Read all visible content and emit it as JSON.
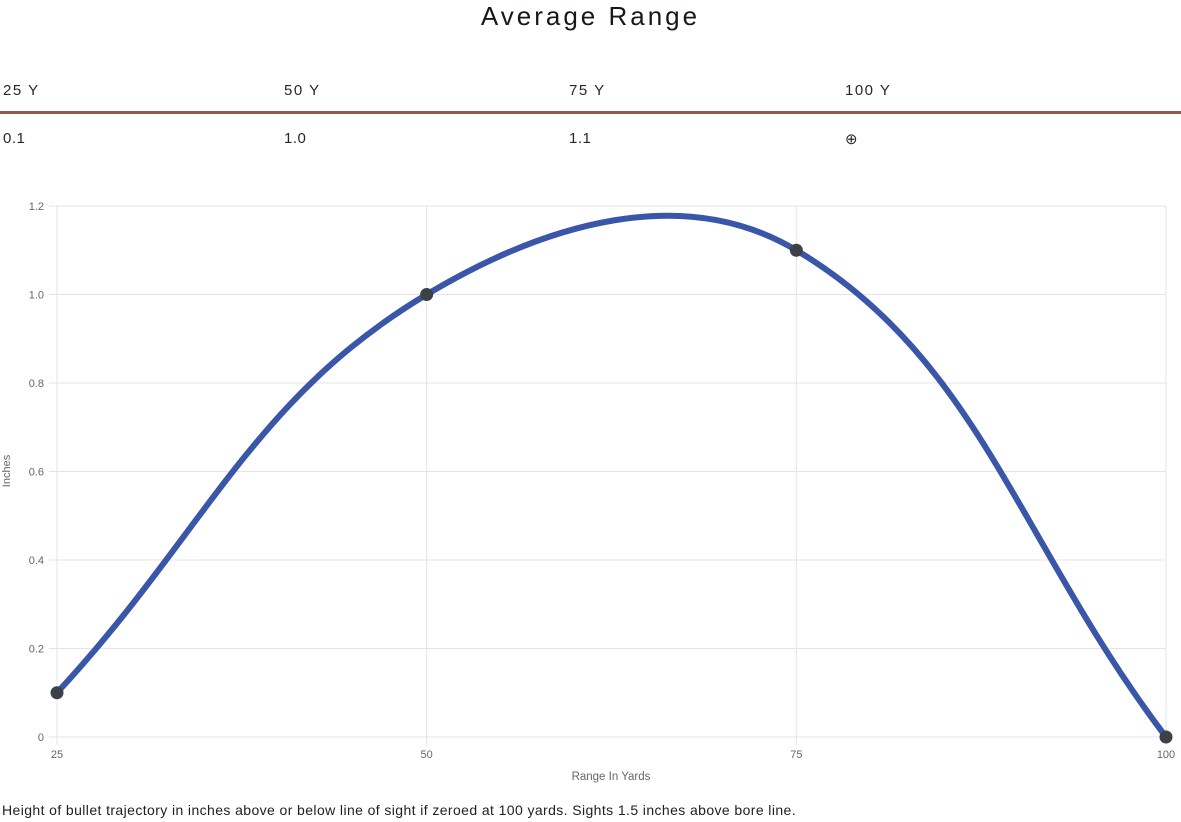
{
  "title": "Average Range",
  "summary": {
    "columns": [
      {
        "label": "25 Y",
        "value": "0.1"
      },
      {
        "label": "50 Y",
        "value": "1.0"
      },
      {
        "label": "75 Y",
        "value": "1.1"
      },
      {
        "label": "100 Y",
        "value": "⊕"
      }
    ],
    "divider_color": "#96584C"
  },
  "chart_data": {
    "type": "line",
    "title": "Average Range",
    "x": [
      25,
      50,
      75,
      100
    ],
    "series": [
      {
        "name": "Bullet trajectory height",
        "values": [
          0.1,
          1.0,
          1.1,
          0
        ]
      }
    ],
    "xlabel": "Range In Yards",
    "ylabel": "Inches",
    "xlim": [
      25,
      100
    ],
    "ylim": [
      0,
      1.2
    ],
    "xticks": [
      25,
      50,
      75,
      100
    ],
    "yticks": [
      0,
      0.2,
      0.4,
      0.6,
      0.8,
      1.0,
      1.2
    ],
    "xtick_labels": [
      "25",
      "50",
      "75",
      "100"
    ],
    "ytick_labels": [
      "0",
      "0.2",
      "0.4",
      "0.6",
      "0.8",
      "1.0",
      "1.2"
    ],
    "grid": true,
    "legend": false,
    "curve": "smooth",
    "line_color": "#3A56A8",
    "marker_color": "#3D4147",
    "grid_color": "#e4e4e4"
  },
  "caption": "Height of bullet trajectory in inches above or below line of sight if zeroed at 100 yards. Sights 1.5 inches above bore line."
}
